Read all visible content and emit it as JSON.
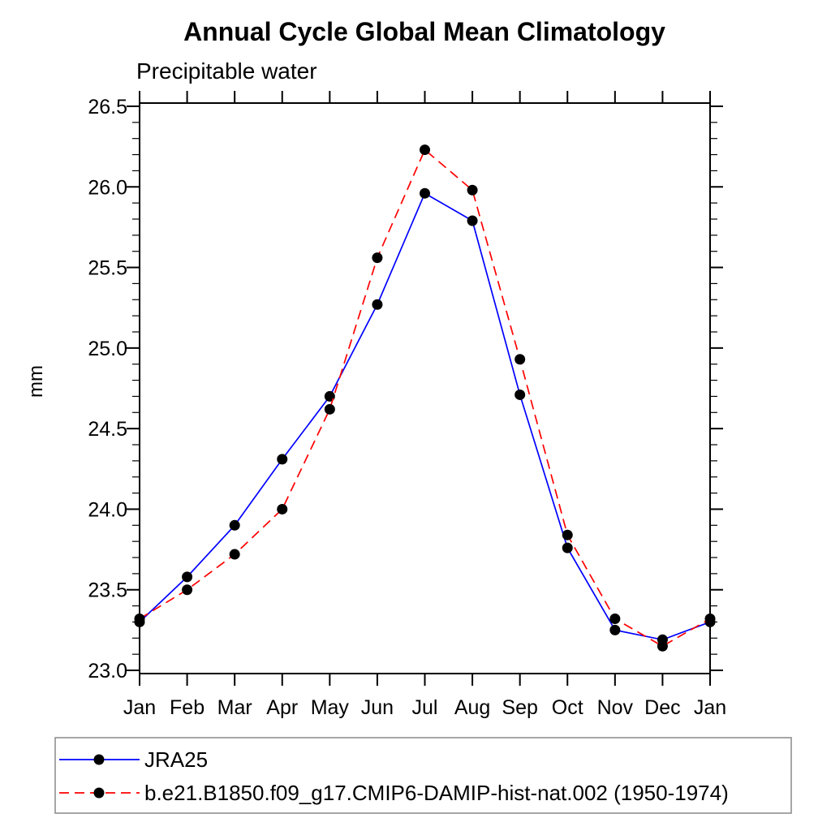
{
  "page": {
    "background": "#ffffff"
  },
  "chart_data": {
    "type": "line",
    "title": "Annual Cycle Global Mean Climatology",
    "subtitle": "Precipitable water",
    "ylabel": "mm",
    "xlabel": "",
    "categories": [
      "Jan",
      "Feb",
      "Mar",
      "Apr",
      "May",
      "Jun",
      "Jul",
      "Aug",
      "Sep",
      "Oct",
      "Nov",
      "Dec",
      "Jan"
    ],
    "ylim": [
      22.98,
      26.52
    ],
    "y_major_ticks": [
      23.0,
      23.5,
      24.0,
      24.5,
      25.0,
      25.5,
      26.0,
      26.5
    ],
    "y_tick_labels": [
      "23.0",
      "23.5",
      "24.0",
      "24.5",
      "25.0",
      "25.5",
      "26.0",
      "26.5"
    ],
    "y_minor_step": 0.1,
    "grid": false,
    "legend_position": "bottom-left-box",
    "axis_color": "#000000",
    "marker": "filled-circle",
    "marker_color": "#000000",
    "series": [
      {
        "name": "JRA25",
        "color": "#0000ff",
        "line_style": "solid",
        "values": [
          23.3,
          23.58,
          23.9,
          24.31,
          24.7,
          25.27,
          25.96,
          25.79,
          24.71,
          23.76,
          23.25,
          23.19,
          23.3
        ]
      },
      {
        "name": "b.e21.B1850.f09_g17.CMIP6-DAMIP-hist-nat.002 (1950-1974)",
        "color": "#ff0000",
        "line_style": "dashed",
        "values": [
          23.32,
          23.5,
          23.72,
          24.0,
          24.62,
          25.56,
          26.23,
          25.98,
          24.93,
          23.84,
          23.32,
          23.15,
          23.32
        ]
      }
    ]
  }
}
